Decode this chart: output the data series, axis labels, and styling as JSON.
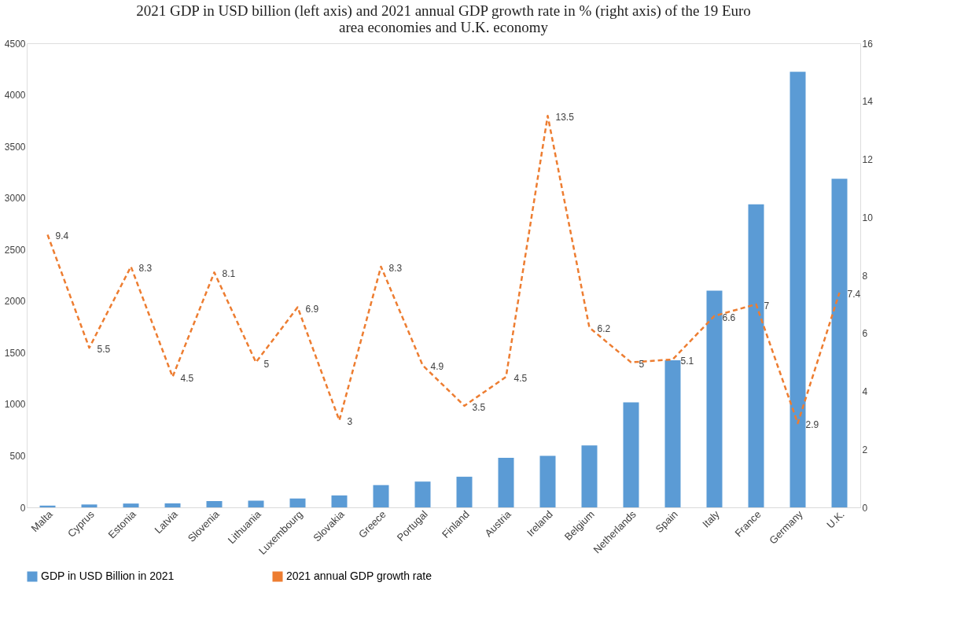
{
  "chart_data": {
    "type": "bar",
    "title": [
      "2021 GDP in USD billion (left axis) and 2021 annual GDP growth rate in % (right axis) of the 19 Euro",
      "area economies and U.K. economy"
    ],
    "categories": [
      "Malta",
      "Cyprus",
      "Estonia",
      "Latvia",
      "Slovenia",
      "Lithuania",
      "Luxembourg",
      "Slovakia",
      "Greece",
      "Portugal",
      "Finland",
      "Austria",
      "Ireland",
      "Belgium",
      "Netherlands",
      "Spain",
      "Italy",
      "France",
      "Germany",
      "U.K."
    ],
    "series": [
      {
        "name": "GDP in USD Billion in 2021",
        "color": "#5b9bd5",
        "values": [
          17,
          28,
          37,
          39,
          61,
          65,
          86,
          116,
          216,
          250,
          297,
          480,
          499,
          600,
          1018,
          1427,
          2101,
          2938,
          4223,
          3187
        ]
      },
      {
        "name": "2021 annual GDP growth rate",
        "color": "#ed7d31",
        "type": "line",
        "axis": "y2",
        "line_style": "dashed",
        "data_labels": true,
        "values": [
          9.4,
          5.5,
          8.3,
          4.5,
          8.1,
          5,
          6.9,
          3,
          8.3,
          4.9,
          3.5,
          4.5,
          13.5,
          6.2,
          5,
          5.1,
          6.6,
          7,
          2.9,
          7.4
        ]
      }
    ],
    "ylim": [
      0,
      4500
    ],
    "yticks": [
      0,
      500,
      1000,
      1500,
      2000,
      2500,
      3000,
      3500,
      4000,
      4500
    ],
    "y2lim": [
      0,
      16
    ],
    "y2ticks": [
      0,
      2,
      4,
      6,
      8,
      10,
      12,
      14,
      16
    ],
    "grid": false,
    "legend": "bottom"
  }
}
